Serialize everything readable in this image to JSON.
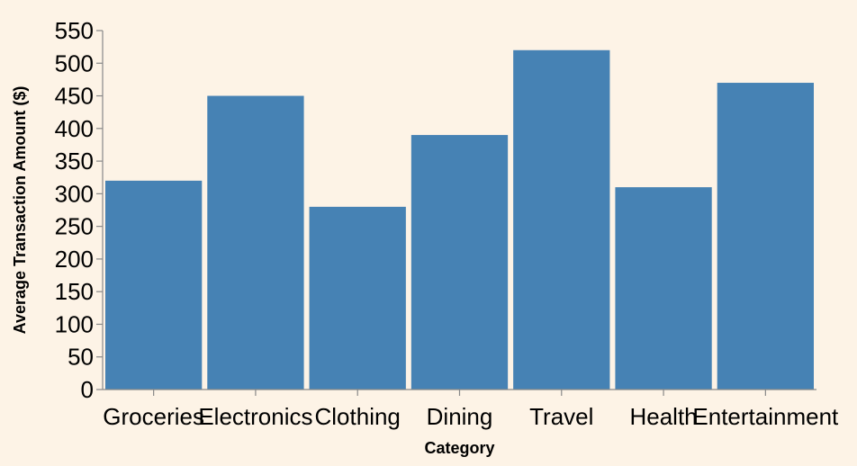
{
  "colors": {
    "background": "#fdf3e6",
    "bar": "#4682b4",
    "axis": "#888888"
  },
  "chart_data": {
    "type": "bar",
    "categories": [
      "Groceries",
      "Electronics",
      "Clothing",
      "Dining",
      "Travel",
      "Health",
      "Entertainment"
    ],
    "values": [
      320,
      450,
      280,
      390,
      520,
      310,
      470
    ],
    "xlabel": "Category",
    "ylabel": "Average Transaction Amount ($)",
    "ylim": [
      0,
      550
    ],
    "yticks": [
      0,
      50,
      100,
      150,
      200,
      250,
      300,
      350,
      400,
      450,
      500,
      550
    ],
    "grid": false,
    "legend": "none"
  }
}
